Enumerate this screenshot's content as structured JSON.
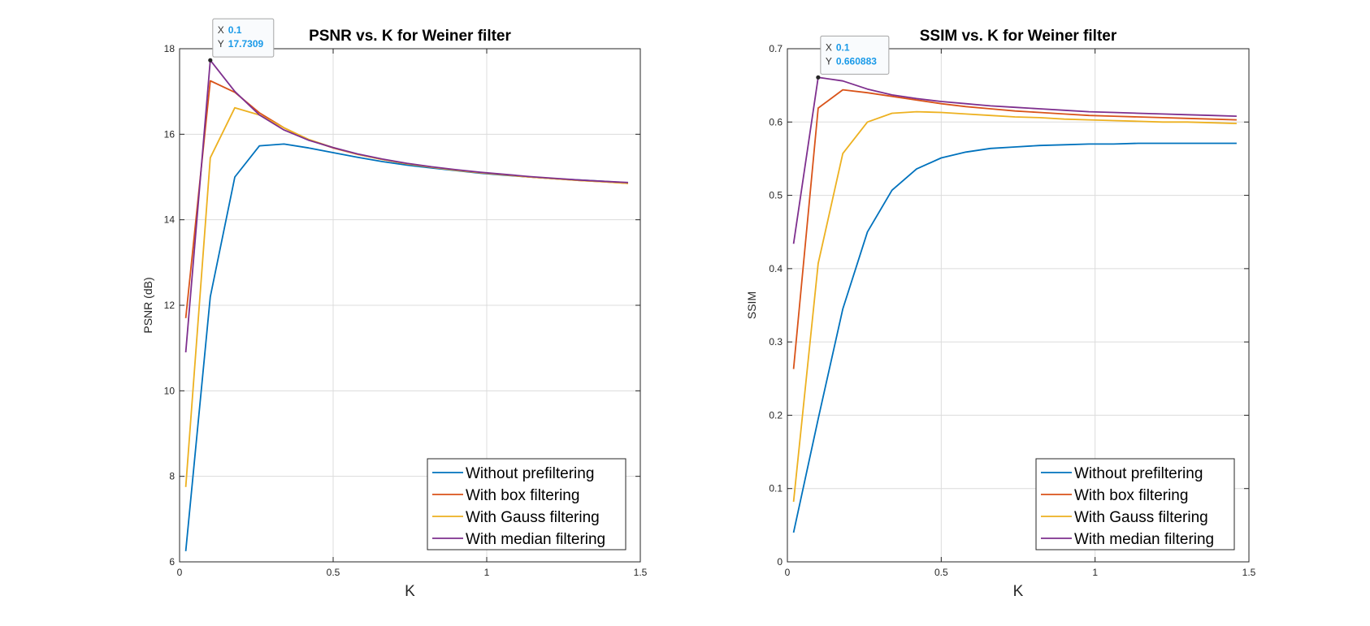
{
  "chart_data": [
    {
      "type": "line",
      "title": "PSNR vs. K for Weiner filter",
      "xlabel": "K",
      "ylabel": "PSNR (dB)",
      "xlim": [
        0,
        1.5
      ],
      "ylim": [
        6,
        18
      ],
      "xticks": [
        0,
        0.5,
        1,
        1.5
      ],
      "xtick_labels": [
        "0",
        "0.5",
        "1",
        "1.5"
      ],
      "yticks": [
        6,
        8,
        10,
        12,
        14,
        16,
        18
      ],
      "ytick_labels": [
        "6",
        "8",
        "10",
        "12",
        "14",
        "16",
        "18"
      ],
      "grid": true,
      "legend_position": "bottom-right",
      "x": [
        0.02,
        0.1,
        0.18,
        0.26,
        0.34,
        0.42,
        0.5,
        0.58,
        0.66,
        0.74,
        0.82,
        0.9,
        0.98,
        1.06,
        1.14,
        1.22,
        1.3,
        1.38,
        1.46
      ],
      "series": [
        {
          "name": "Without prefiltering",
          "color": "#0072BD",
          "values": [
            6.25,
            12.2,
            15.0,
            15.73,
            15.77,
            15.68,
            15.57,
            15.46,
            15.36,
            15.28,
            15.21,
            15.15,
            15.09,
            15.04,
            15.0,
            14.96,
            14.93,
            14.9,
            14.86
          ]
        },
        {
          "name": "With box filtering",
          "color": "#D95319",
          "values": [
            11.7,
            17.25,
            16.98,
            16.5,
            16.15,
            15.87,
            15.68,
            15.53,
            15.41,
            15.31,
            15.23,
            15.16,
            15.1,
            15.05,
            15.0,
            14.96,
            14.92,
            14.89,
            14.85
          ]
        },
        {
          "name": "With Gauss filtering",
          "color": "#EDB120",
          "values": [
            7.75,
            15.45,
            16.62,
            16.45,
            16.15,
            15.88,
            15.69,
            15.53,
            15.41,
            15.31,
            15.23,
            15.16,
            15.1,
            15.05,
            15.0,
            14.96,
            14.92,
            14.89,
            14.85
          ]
        },
        {
          "name": "With median filtering",
          "color": "#7E2F8E",
          "values": [
            10.9,
            17.7309,
            17.0,
            16.45,
            16.1,
            15.86,
            15.69,
            15.54,
            15.42,
            15.32,
            15.24,
            15.17,
            15.11,
            15.06,
            15.01,
            14.97,
            14.93,
            14.9,
            14.87
          ]
        }
      ],
      "datatip": {
        "x_key": "X",
        "x_value": "0.1",
        "y_key": "Y",
        "y_value": "17.7309",
        "x": 0.1,
        "y": 17.7309
      }
    },
    {
      "type": "line",
      "title": "SSIM vs. K for Weiner filter",
      "xlabel": "K",
      "ylabel": "SSIM",
      "xlim": [
        0,
        1.5
      ],
      "ylim": [
        0,
        0.7
      ],
      "xticks": [
        0,
        0.5,
        1,
        1.5
      ],
      "xtick_labels": [
        "0",
        "0.5",
        "1",
        "1.5"
      ],
      "yticks": [
        0,
        0.1,
        0.2,
        0.3,
        0.4,
        0.5,
        0.6,
        0.7
      ],
      "ytick_labels": [
        "0",
        "0.1",
        "0.2",
        "0.3",
        "0.4",
        "0.5",
        "0.6",
        "0.7"
      ],
      "grid": true,
      "legend_position": "bottom-right",
      "x": [
        0.02,
        0.1,
        0.18,
        0.26,
        0.34,
        0.42,
        0.5,
        0.58,
        0.66,
        0.74,
        0.82,
        0.9,
        0.98,
        1.06,
        1.14,
        1.22,
        1.3,
        1.38,
        1.46
      ],
      "series": [
        {
          "name": "Without prefiltering",
          "color": "#0072BD",
          "values": [
            0.04,
            0.195,
            0.345,
            0.45,
            0.507,
            0.536,
            0.551,
            0.559,
            0.564,
            0.566,
            0.568,
            0.569,
            0.57,
            0.57,
            0.571,
            0.571,
            0.571,
            0.571,
            0.571
          ]
        },
        {
          "name": "With box filtering",
          "color": "#D95319",
          "values": [
            0.263,
            0.619,
            0.644,
            0.64,
            0.635,
            0.63,
            0.625,
            0.621,
            0.618,
            0.615,
            0.613,
            0.611,
            0.609,
            0.608,
            0.607,
            0.606,
            0.605,
            0.604,
            0.603
          ]
        },
        {
          "name": "With Gauss filtering",
          "color": "#EDB120",
          "values": [
            0.082,
            0.407,
            0.557,
            0.6,
            0.612,
            0.614,
            0.613,
            0.611,
            0.609,
            0.607,
            0.606,
            0.604,
            0.603,
            0.602,
            0.601,
            0.6,
            0.6,
            0.599,
            0.598
          ]
        },
        {
          "name": "With median filtering",
          "color": "#7E2F8E",
          "values": [
            0.434,
            0.660883,
            0.656,
            0.645,
            0.637,
            0.632,
            0.628,
            0.625,
            0.622,
            0.62,
            0.618,
            0.616,
            0.614,
            0.613,
            0.612,
            0.611,
            0.61,
            0.609,
            0.608
          ]
        }
      ],
      "datatip": {
        "x_key": "X",
        "x_value": "0.1",
        "y_key": "Y",
        "y_value": "0.660883",
        "x": 0.1,
        "y": 0.660883
      }
    }
  ]
}
